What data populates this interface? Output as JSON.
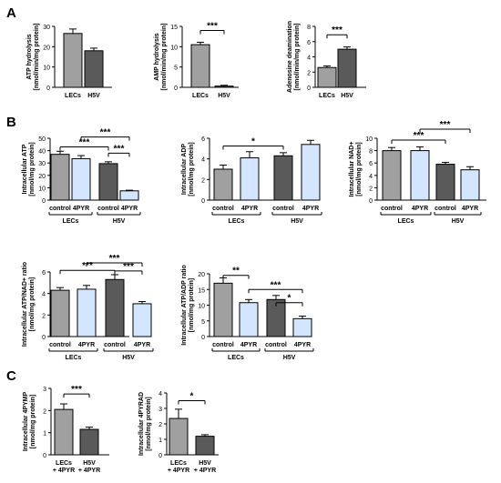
{
  "panels": [
    "A",
    "B",
    "C"
  ],
  "colors": {
    "gray": "#a0a0a0",
    "light_blue": "#d4e6ff",
    "dark_gray": "#5a5a5a"
  },
  "chart_data": [
    {
      "id": "a1",
      "type": "bar",
      "ylabel": [
        "ATP hydrolysis",
        "[nmol/min/mg protein]"
      ],
      "ylim": [
        0,
        30
      ],
      "yticks": [
        0,
        10,
        20,
        30
      ],
      "categories": [
        "LECs",
        "H5V"
      ],
      "values": [
        26.5,
        18.0
      ],
      "errors": [
        2.2,
        1.3
      ],
      "bar_colors": [
        "gray",
        "dark_gray"
      ],
      "sig": []
    },
    {
      "id": "a2",
      "type": "bar",
      "ylabel": [
        "AMP hydrolysis",
        "[nmol/min/mg protein]"
      ],
      "ylim": [
        0,
        15
      ],
      "yticks": [
        0,
        5,
        10,
        15
      ],
      "categories": [
        "LECs",
        "H5V"
      ],
      "values": [
        10.5,
        0.3
      ],
      "errors": [
        0.6,
        0.2
      ],
      "bar_colors": [
        "gray",
        "dark_gray"
      ],
      "sig": [
        {
          "from": 0,
          "to": 1,
          "level": 14.0,
          "label": "***"
        }
      ]
    },
    {
      "id": "a3",
      "type": "bar",
      "ylabel": [
        "Adenosine deamination",
        "[nmol/min/mg protein]"
      ],
      "ylim": [
        0,
        8
      ],
      "yticks": [
        0,
        2,
        4,
        6,
        8
      ],
      "categories": [
        "LECs",
        "H5V"
      ],
      "values": [
        2.6,
        5.0
      ],
      "errors": [
        0.2,
        0.3
      ],
      "bar_colors": [
        "gray",
        "dark_gray"
      ],
      "sig": [
        {
          "from": 0,
          "to": 1,
          "level": 6.9,
          "label": "***"
        }
      ]
    },
    {
      "id": "b1",
      "type": "bar",
      "ylabel": [
        "Intracellular ATP",
        "[nmol/mg protein]"
      ],
      "ylim": [
        0,
        50
      ],
      "yticks": [
        0,
        10,
        20,
        30,
        40,
        50
      ],
      "categories": [
        "control",
        "4PYR",
        "control",
        "4PYR"
      ],
      "groups": [
        "LECs",
        "H5V"
      ],
      "values": [
        37,
        33.5,
        29.5,
        7.5
      ],
      "errors": [
        2.5,
        2.5,
        1.5,
        0.5
      ],
      "bar_colors": [
        "gray",
        "light_blue",
        "dark_gray",
        "light_blue"
      ],
      "sig": [
        {
          "from": 2,
          "to": 3,
          "level": 38,
          "label": "***"
        },
        {
          "from": 0,
          "to": 2,
          "level": 43,
          "label": "***"
        },
        {
          "from": 1,
          "to": 3,
          "level": 51,
          "label": "***"
        }
      ]
    },
    {
      "id": "b2",
      "type": "bar",
      "ylabel": [
        "Intracellular ADP",
        "[nmol/mg protein]"
      ],
      "ylim": [
        0,
        6
      ],
      "yticks": [
        0,
        2,
        4,
        6
      ],
      "categories": [
        "control",
        "4PYR",
        "control",
        "4PYR"
      ],
      "groups": [
        "LECs",
        "H5V"
      ],
      "values": [
        3.0,
        4.1,
        4.3,
        5.4
      ],
      "errors": [
        0.4,
        0.6,
        0.3,
        0.4
      ],
      "bar_colors": [
        "gray",
        "light_blue",
        "dark_gray",
        "light_blue"
      ],
      "sig": [
        {
          "from": 0,
          "to": 2,
          "level": 5.25,
          "label": "*"
        }
      ]
    },
    {
      "id": "b3",
      "type": "bar",
      "ylabel": [
        "Intracellular NAD+",
        "[nmol/mg protein]"
      ],
      "ylim": [
        0,
        10
      ],
      "yticks": [
        0,
        2,
        4,
        6,
        8,
        10
      ],
      "categories": [
        "control",
        "4PYR",
        "control",
        "4PYR"
      ],
      "groups": [
        "LECs",
        "H5V"
      ],
      "values": [
        8.0,
        8.0,
        5.8,
        4.9
      ],
      "errors": [
        0.5,
        0.6,
        0.3,
        0.5
      ],
      "bar_colors": [
        "gray",
        "light_blue",
        "dark_gray",
        "light_blue"
      ],
      "sig": [
        {
          "from": 0,
          "to": 2,
          "level": 9.7,
          "label": "***"
        },
        {
          "from": 1,
          "to": 3,
          "level": 11.5,
          "label": "***"
        }
      ]
    },
    {
      "id": "b4",
      "type": "bar",
      "ylabel": [
        "Intracellular ATP/NAD+ ratio",
        "[nmol/mg protein]"
      ],
      "ylim": [
        0,
        6
      ],
      "yticks": [
        0,
        2,
        4,
        6
      ],
      "categories": [
        "control",
        "4PYR",
        "control",
        "4PYR"
      ],
      "groups": [
        "LECs",
        "H5V"
      ],
      "values": [
        4.3,
        4.4,
        5.3,
        3.05
      ],
      "errors": [
        0.25,
        0.35,
        0.45,
        0.2
      ],
      "bar_colors": [
        "gray",
        "light_blue",
        "dark_gray",
        "light_blue"
      ],
      "sig": [
        {
          "from": 2,
          "to": 3,
          "level": 6.1,
          "label": "***"
        },
        {
          "from": 0,
          "to": 2,
          "level": 6.15,
          "label": "***"
        },
        {
          "from": 1,
          "to": 3,
          "level": 7.0,
          "label": "***"
        }
      ]
    },
    {
      "id": "b5",
      "type": "bar",
      "ylabel": [
        "Intracellular ATP/ADP ratio",
        "[nmol/mg protein]"
      ],
      "ylim": [
        0,
        20
      ],
      "yticks": [
        0,
        5,
        10,
        15,
        20
      ],
      "categories": [
        "control",
        "4PYR",
        "control",
        "4PYR"
      ],
      "groups": [
        "LECs",
        "H5V"
      ],
      "values": [
        17,
        10.8,
        11.8,
        5.7
      ],
      "errors": [
        1.7,
        1.0,
        1.3,
        0.8
      ],
      "bar_colors": [
        "gray",
        "light_blue",
        "dark_gray",
        "light_blue"
      ],
      "sig": [
        {
          "from": 0,
          "to": 1,
          "level": 19.5,
          "label": "**"
        },
        {
          "from": 1,
          "to": 3,
          "level": 15.0,
          "label": "***"
        },
        {
          "from": 2,
          "to": 3,
          "level": 10.8,
          "label": "*"
        }
      ]
    },
    {
      "id": "c1",
      "type": "bar",
      "ylabel": [
        "Intracellular 4PYMP",
        "[nmol/mg protein]"
      ],
      "ylim": [
        0,
        3
      ],
      "yticks": [
        0,
        1,
        2,
        3
      ],
      "categories": [
        "LECs\n+ 4PYR",
        "H5V\n+ 4PYR"
      ],
      "values": [
        2.05,
        1.15
      ],
      "errors": [
        0.25,
        0.1
      ],
      "bar_colors": [
        "gray",
        "dark_gray"
      ],
      "sig": [
        {
          "from": 0,
          "to": 1,
          "level": 2.75,
          "label": "***"
        }
      ]
    },
    {
      "id": "c2",
      "type": "bar",
      "ylabel": [
        "Intracellular 4PYRAD",
        "[nmol/mg protein]"
      ],
      "ylim": [
        0,
        4
      ],
      "yticks": [
        0,
        1,
        2,
        3,
        4
      ],
      "categories": [
        "LECs\n+ 4PYR",
        "H5V\n+ 4PYR"
      ],
      "values": [
        2.35,
        1.2
      ],
      "errors": [
        0.6,
        0.1
      ],
      "bar_colors": [
        "gray",
        "dark_gray"
      ],
      "sig": [
        {
          "from": 0,
          "to": 1,
          "level": 3.5,
          "label": "*"
        }
      ]
    }
  ]
}
